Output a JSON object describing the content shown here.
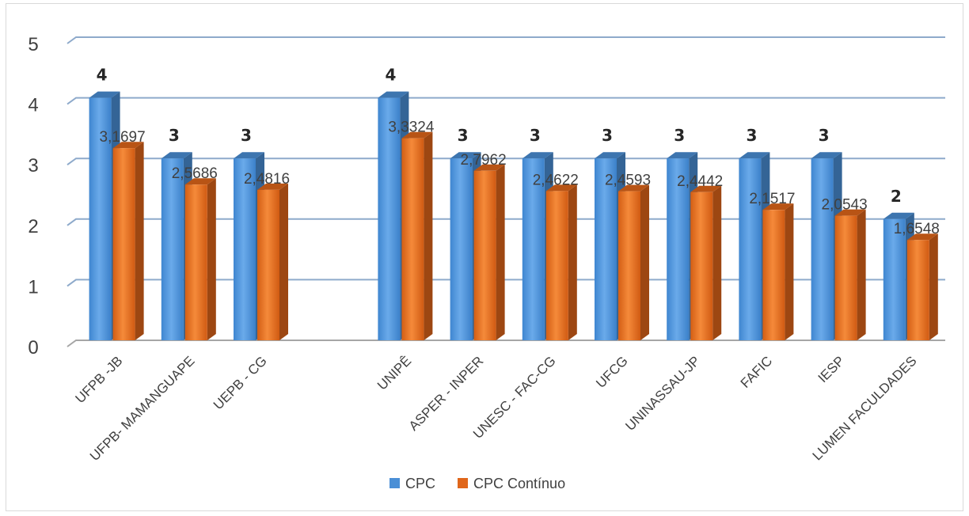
{
  "chart_data": {
    "type": "bar",
    "categories": [
      "UFPB -JB",
      "UFPB- MAMANGUAPE",
      "UEPB - CG",
      "",
      "UNIPÊ",
      "ASPER - INPER",
      "UNESC - FAC-CG",
      "UFCG",
      "UNINASSAU-JP",
      "FAFIC",
      "IESP",
      "LUMEN FACULDADES"
    ],
    "series": [
      {
        "name": "CPC",
        "values": [
          4,
          3,
          3,
          null,
          4,
          3,
          3,
          3,
          3,
          3,
          3,
          2
        ],
        "labels": [
          "4",
          "3",
          "3",
          "",
          "4",
          "3",
          "3",
          "3",
          "3",
          "3",
          "3",
          "2"
        ],
        "color": "#4a8fd6"
      },
      {
        "name": "CPC Contínuo",
        "values": [
          3.1697,
          2.5686,
          2.4816,
          null,
          3.3324,
          2.7962,
          2.4622,
          2.4593,
          2.4442,
          2.1517,
          2.0543,
          1.6548
        ],
        "labels": [
          "3,1697",
          "2,5686",
          "2,4816",
          "",
          "3,3324",
          "2,7962",
          "2,4622",
          "2,4593",
          "2,4442",
          "2,1517",
          "2,0543",
          "1,6548"
        ],
        "color": "#e0661a"
      }
    ],
    "yticks": [
      "0",
      "1",
      "2",
      "3",
      "4",
      "5"
    ],
    "ylim": [
      0,
      5
    ],
    "grid": true,
    "legend_position": "bottom"
  }
}
